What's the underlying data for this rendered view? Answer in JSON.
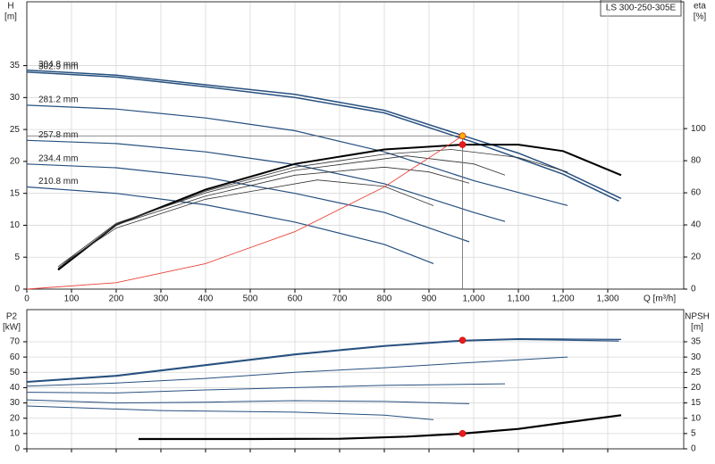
{
  "chart_data": [
    {
      "type": "line",
      "box_label": "LS 300-250-305E",
      "y_label": "H",
      "y_unit": "[m]",
      "y2_label": "eta",
      "y2_unit": "[%]",
      "x_label": "Q [m³/h]",
      "xlim": [
        0,
        1470
      ],
      "ylim": [
        0,
        45
      ],
      "y2lim": [
        0,
        179
      ],
      "grid": true,
      "xticks": [
        0,
        100,
        200,
        300,
        400,
        500,
        600,
        700,
        800,
        900,
        {
          "value": 1000,
          "label": "1,000"
        },
        {
          "value": 1100,
          "label": "1,100"
        },
        {
          "value": 1200,
          "label": "1,200"
        },
        {
          "value": 1300,
          "label": "1,300"
        }
      ],
      "yticks": [
        0,
        5,
        10,
        15,
        20,
        25,
        30,
        35
      ],
      "y2ticks": [
        0,
        20,
        40,
        60,
        80,
        100
      ],
      "series": [
        {
          "name": "304.8 mm",
          "color": "#27507f",
          "line_width": 1.5,
          "x": [
            0,
            200,
            400,
            600,
            800,
            1000,
            1100,
            1200,
            1330
          ],
          "values": [
            34.3,
            33.5,
            32.0,
            30.5,
            28.0,
            23.5,
            21.3,
            18.5,
            14.2
          ]
        },
        {
          "name": "302.9 mm",
          "color": "#27507f",
          "line_width": 1.5,
          "x": [
            0,
            200,
            400,
            600,
            800,
            1000,
            1200,
            1325
          ],
          "values": [
            34.0,
            33.2,
            31.7,
            30.0,
            27.6,
            23.0,
            18.0,
            13.8
          ]
        },
        {
          "name": "281.2 mm",
          "color": "#27507f",
          "line_width": 1.2,
          "x": [
            0,
            200,
            400,
            600,
            800,
            1000,
            1210
          ],
          "values": [
            28.8,
            28.2,
            26.8,
            24.8,
            21.5,
            17.0,
            13.1
          ]
        },
        {
          "name": "257.8 mm",
          "color": "#27507f",
          "line_width": 1.2,
          "x": [
            0,
            200,
            400,
            600,
            800,
            1000,
            1070
          ],
          "values": [
            23.3,
            22.8,
            21.5,
            19.5,
            16.5,
            12.0,
            10.6
          ]
        },
        {
          "name": "234.4 mm",
          "color": "#27507f",
          "line_width": 1.2,
          "x": [
            0,
            200,
            400,
            600,
            800,
            990
          ],
          "values": [
            19.6,
            19.0,
            17.5,
            15.0,
            12.0,
            7.4
          ]
        },
        {
          "name": "210.8 mm",
          "color": "#27507f",
          "line_width": 1.2,
          "x": [
            0,
            200,
            400,
            600,
            800,
            910
          ],
          "values": [
            16.0,
            15.0,
            13.2,
            10.5,
            7.0,
            4.0
          ]
        },
        {
          "color": "#000000",
          "line_width": 2,
          "axis": "y2",
          "x": [
            70,
            200,
            400,
            600,
            800,
            975,
            1100,
            1200,
            1330
          ],
          "values": [
            12,
            40,
            62,
            78,
            87,
            90,
            90,
            86,
            71
          ]
        },
        {
          "color": "#333333",
          "line_width": 0.8,
          "axis": "y2",
          "x": [
            70,
            200,
            400,
            600,
            800,
            950,
            1100,
            1210
          ],
          "values": [
            13,
            40,
            61,
            76,
            84,
            87,
            82,
            73
          ]
        },
        {
          "color": "#333333",
          "line_width": 0.8,
          "axis": "y2",
          "x": [
            70,
            200,
            400,
            600,
            850,
            1000,
            1070
          ],
          "values": [
            14,
            41,
            60,
            74,
            83,
            78,
            71
          ]
        },
        {
          "color": "#333333",
          "line_width": 0.8,
          "axis": "y2",
          "x": [
            80,
            200,
            400,
            600,
            800,
            900,
            990
          ],
          "values": [
            15,
            40,
            58,
            71,
            76,
            73,
            66
          ]
        },
        {
          "color": "#333333",
          "line_width": 0.8,
          "axis": "y2",
          "x": [
            80,
            200,
            400,
            650,
            800,
            910
          ],
          "values": [
            16,
            38,
            56,
            68,
            64,
            52
          ]
        },
        {
          "color": "#e8433a",
          "line_width": 0.9,
          "x": [
            0,
            200,
            400,
            600,
            800,
            975
          ],
          "values": [
            0,
            1,
            4,
            9,
            16,
            24
          ]
        }
      ],
      "points": [
        {
          "x": 975,
          "y": 24,
          "color": "#ffb000",
          "guides": true
        },
        {
          "x": 975,
          "y": 90,
          "axis": "y2",
          "color": "#e81c1c"
        }
      ]
    },
    {
      "type": "line",
      "y_label": "P2",
      "y_unit": "[kW]",
      "y2_label": "NPSH",
      "y2_unit": "[m]",
      "xlim": [
        0,
        1470
      ],
      "ylim": [
        0,
        91
      ],
      "y2lim": [
        0,
        45.5
      ],
      "grid": true,
      "yticks": [
        0,
        10,
        20,
        30,
        40,
        50,
        60,
        70
      ],
      "y2ticks": [
        0,
        5,
        10,
        15,
        20,
        25,
        30,
        35
      ],
      "series": [
        {
          "color": "#27507f",
          "line_width": 1.2,
          "x": [
            0,
            200,
            400,
            600,
            800,
            975,
            1100,
            1330
          ],
          "values": [
            44,
            48,
            55,
            62,
            67.5,
            71,
            72,
            71.5
          ]
        },
        {
          "color": "#27507f",
          "line_width": 1.2,
          "x": [
            0,
            200,
            400,
            600,
            800,
            975,
            1100,
            1325
          ],
          "values": [
            43.5,
            47.5,
            54.5,
            61.5,
            67,
            70.5,
            71.5,
            70.5
          ]
        },
        {
          "color": "#27507f",
          "line_width": 1,
          "x": [
            0,
            200,
            400,
            600,
            800,
            1000,
            1210
          ],
          "values": [
            41,
            43,
            46,
            50,
            53,
            56.5,
            60
          ]
        },
        {
          "color": "#27507f",
          "line_width": 1,
          "x": [
            0,
            200,
            400,
            600,
            800,
            1070
          ],
          "values": [
            37,
            36.5,
            38.5,
            40,
            41.5,
            42.5
          ]
        },
        {
          "color": "#27507f",
          "line_width": 1,
          "x": [
            0,
            200,
            400,
            600,
            800,
            990
          ],
          "values": [
            32,
            30,
            30.5,
            31.5,
            31,
            29.5
          ]
        },
        {
          "color": "#27507f",
          "line_width": 1,
          "x": [
            0,
            300,
            600,
            800,
            910
          ],
          "values": [
            28,
            25,
            24,
            22,
            19
          ]
        },
        {
          "color": "#000000",
          "line_width": 2.2,
          "axis": "y2",
          "x": [
            250,
            500,
            700,
            850,
            975,
            1100,
            1200,
            1330
          ],
          "values": [
            3.2,
            3.2,
            3.3,
            4.0,
            5.0,
            6.5,
            8.5,
            11
          ]
        }
      ],
      "points": [
        {
          "x": 975,
          "y": 71,
          "color": "#e81c1c"
        },
        {
          "x": 975,
          "y": 5,
          "axis": "y2",
          "color": "#e81c1c"
        }
      ]
    }
  ]
}
